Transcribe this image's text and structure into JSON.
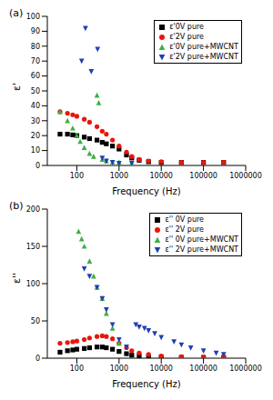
{
  "chart_data": [
    {
      "type": "scatter",
      "title": "(a)",
      "x_label": "Frequency (Hz)",
      "y_label": "ε'",
      "log": "x",
      "legend": "upper right",
      "xlim": [
        20,
        1000000
      ],
      "xticks": [
        100,
        1000,
        10000,
        100000,
        1000000
      ],
      "ylim": [
        0,
        100
      ],
      "yticks": [
        0,
        10,
        20,
        30,
        40,
        50,
        60,
        70,
        80,
        90,
        100
      ],
      "series": [
        {
          "name": "ε'0V pure",
          "color": "#000000",
          "marker": "square",
          "x": [
            40,
            60,
            80,
            100,
            150,
            200,
            300,
            400,
            500,
            700,
            1000,
            1500,
            2000,
            3000,
            5000,
            10000,
            30000,
            100000,
            300000
          ],
          "values": [
            21,
            21,
            20.5,
            20,
            19,
            18,
            17,
            15.5,
            14.5,
            13,
            11,
            7,
            5,
            3.5,
            2.5,
            2,
            2,
            2,
            2
          ]
        },
        {
          "name": "ε'2V pure",
          "color": "#e8160c",
          "marker": "circle",
          "x": [
            40,
            60,
            80,
            100,
            150,
            200,
            300,
            400,
            500,
            700,
            1000,
            1500,
            2000,
            3000,
            5000,
            10000,
            30000,
            100000,
            300000
          ],
          "values": [
            36,
            35,
            34,
            33,
            31,
            29,
            26,
            23,
            21,
            17,
            13,
            9,
            6,
            4,
            3,
            2.5,
            2,
            2,
            2
          ]
        },
        {
          "name": "ε'0V pure+MWCNT",
          "color": "#3cb043",
          "marker": "triangle-up",
          "x": [
            40,
            60,
            80,
            100,
            120,
            150,
            200,
            250,
            300,
            330,
            400,
            500,
            700,
            1000,
            2000
          ],
          "values": [
            36,
            30,
            25,
            20,
            16,
            12,
            8,
            6,
            47,
            42,
            4,
            3,
            2,
            2,
            1.5
          ]
        },
        {
          "name": "ε'2V pure+MWCNT",
          "color": "#1f3fb0",
          "marker": "triangle-down",
          "x": [
            130,
            160,
            220,
            310,
            400,
            500,
            700,
            1000,
            2000
          ],
          "values": [
            70,
            92,
            63,
            78,
            5,
            3,
            2,
            1.5,
            1.5
          ]
        }
      ]
    },
    {
      "type": "scatter",
      "title": "(b)",
      "x_label": "Frequency (Hz)",
      "y_label": "ε''",
      "log": "x",
      "legend": "upper right",
      "xlim": [
        20,
        1000000
      ],
      "xticks": [
        100,
        1000,
        10000,
        100000,
        1000000
      ],
      "ylim": [
        0,
        200
      ],
      "yticks": [
        0,
        50,
        100,
        150,
        200
      ],
      "series": [
        {
          "name": "ε'' 0V pure",
          "color": "#000000",
          "marker": "square",
          "x": [
            40,
            60,
            80,
            100,
            150,
            200,
            300,
            400,
            500,
            700,
            1000,
            1500,
            2000,
            3000,
            5000,
            10000,
            30000,
            100000,
            300000
          ],
          "values": [
            8,
            10,
            11,
            12,
            13,
            14,
            15,
            15,
            14,
            12,
            9,
            6,
            4,
            3,
            2,
            1.5,
            1,
            1,
            1
          ]
        },
        {
          "name": "ε'' 2V pure",
          "color": "#e8160c",
          "marker": "circle",
          "x": [
            40,
            60,
            80,
            100,
            150,
            200,
            300,
            400,
            500,
            700,
            1000,
            1500,
            2000,
            3000,
            5000,
            10000,
            30000,
            100000,
            300000
          ],
          "values": [
            20,
            21,
            22,
            23,
            25,
            27,
            29,
            30,
            29,
            26,
            20,
            14,
            10,
            7,
            5,
            3,
            2,
            1.5,
            1
          ]
        },
        {
          "name": "ε'' 0V pure+MWCNT",
          "color": "#3cb043",
          "marker": "triangle-up",
          "x": [
            110,
            130,
            150,
            200,
            250,
            300,
            400,
            500,
            700,
            1000
          ],
          "values": [
            170,
            160,
            150,
            130,
            110,
            95,
            80,
            60,
            40,
            20
          ]
        },
        {
          "name": "ε'' 2V pure+MWCNT",
          "color": "#1f3fb0",
          "marker": "triangle-down",
          "x": [
            150,
            200,
            300,
            400,
            500,
            700,
            1000,
            1500,
            2500,
            3000,
            4000,
            5000,
            7000,
            10000,
            20000,
            30000,
            50000,
            100000,
            200000,
            300000
          ],
          "values": [
            120,
            110,
            95,
            80,
            65,
            45,
            25,
            15,
            45,
            42,
            40,
            37,
            33,
            28,
            22,
            18,
            14,
            10,
            7,
            5
          ]
        }
      ]
    }
  ]
}
